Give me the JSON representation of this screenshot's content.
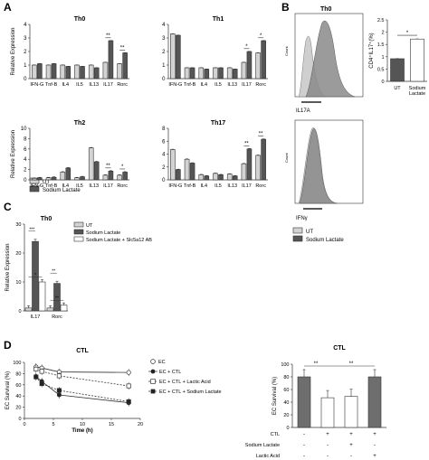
{
  "panels": {
    "A": "A",
    "B": "B",
    "C": "C",
    "D": "D"
  },
  "colors": {
    "ut": "#d3d3d3",
    "lactate": "#555555",
    "ab": "#ffffff",
    "stroke": "#333333",
    "hist_light": "#cfcfcf",
    "hist_dark": "#8a8a8a",
    "ec_dark": "#6e6e6e"
  },
  "legends": {
    "ab_ut": "UT",
    "ab_lac": "Sodium Lactate",
    "b_ut": "UT",
    "b_lac": "Sodium Lactate",
    "c_ut": "UT",
    "c_lac": "Sodium Lactate",
    "c_ab": "Sodium Lactate + Slc5a12 AB",
    "d_ec": "EC",
    "d_ctl": "EC + CTL",
    "d_la": "EC + CTL + Lactic Acid",
    "d_sl": "EC + CTL + Sodium Lactate"
  },
  "flow": {
    "title": "Th0",
    "label_top": "IL17A",
    "label_bot": "IFNγ",
    "ylabel": "Count"
  },
  "table": {
    "rows": [
      "CTL",
      "Sodium Lactate",
      "Lactic Acid"
    ],
    "cells": [
      [
        "-",
        "+",
        "+",
        "+"
      ],
      [
        "-",
        "-",
        "+",
        "-"
      ],
      [
        "-",
        "-",
        "-",
        "+"
      ]
    ]
  },
  "chart_data": [
    {
      "type": "bar",
      "title": "Th0",
      "ylabel": "Relative Expression",
      "ylim": [
        0,
        4
      ],
      "yticks": [
        0,
        1,
        2,
        3,
        4
      ],
      "categories": [
        "IFN-G",
        "Tnf-B",
        "IL4",
        "IL5",
        "IL13",
        "IL17",
        "Rorc"
      ],
      "series": [
        {
          "name": "UT",
          "values": [
            1,
            1,
            1,
            1,
            1,
            1.2,
            1.1
          ]
        },
        {
          "name": "Sodium Lactate",
          "values": [
            1.1,
            1.1,
            0.9,
            0.9,
            0.8,
            2.8,
            1.9
          ]
        }
      ],
      "sig": [
        {
          "cat": 5,
          "text": "**"
        },
        {
          "cat": 6,
          "text": "**"
        }
      ]
    },
    {
      "type": "bar",
      "title": "Th1",
      "ylabel": "",
      "ylim": [
        0,
        4
      ],
      "yticks": [
        0,
        1,
        2,
        3,
        4
      ],
      "categories": [
        "IFN-G",
        "Tnf-B",
        "IL4",
        "IL5",
        "IL13",
        "IL17",
        "Rorc"
      ],
      "series": [
        {
          "name": "UT",
          "values": [
            3.3,
            0.8,
            0.8,
            0.8,
            0.8,
            1.2,
            1.9
          ]
        },
        {
          "name": "Sodium Lactate",
          "values": [
            3.2,
            0.8,
            0.7,
            0.8,
            0.7,
            2.0,
            2.8
          ]
        }
      ],
      "sig": [
        {
          "cat": 5,
          "text": "*"
        },
        {
          "cat": 6,
          "text": "*"
        }
      ]
    },
    {
      "type": "bar",
      "title": "Th2",
      "ylabel": "Relative Expression",
      "ylim": [
        0,
        10
      ],
      "yticks": [
        0,
        2,
        4,
        6,
        8,
        10
      ],
      "categories": [
        "IFN-G",
        "Tnf-B",
        "IL4",
        "IL5",
        "IL13",
        "IL17",
        "Rorc"
      ],
      "series": [
        {
          "name": "UT",
          "values": [
            0.3,
            0.4,
            1.5,
            0.4,
            6.2,
            0.9,
            0.9
          ]
        },
        {
          "name": "Sodium Lactate",
          "values": [
            0.4,
            0.5,
            2.3,
            0.6,
            3.5,
            1.7,
            1.5
          ]
        }
      ],
      "sig": [
        {
          "cat": 5,
          "text": "**"
        },
        {
          "cat": 6,
          "text": "*"
        }
      ]
    },
    {
      "type": "bar",
      "title": "Th17",
      "ylabel": "",
      "ylim": [
        0,
        8
      ],
      "yticks": [
        0,
        2,
        4,
        6,
        8
      ],
      "categories": [
        "IFN-G",
        "Tnf-B",
        "IL4",
        "IL5",
        "IL13",
        "IL17",
        "Rorc"
      ],
      "series": [
        {
          "name": "UT",
          "values": [
            4.7,
            3.2,
            0.8,
            1.0,
            0.9,
            2.5,
            3.8
          ]
        },
        {
          "name": "Sodium Lactate",
          "values": [
            1.6,
            2.6,
            0.6,
            0.8,
            0.6,
            4.8,
            6.3
          ]
        }
      ],
      "sig": [
        {
          "cat": 5,
          "text": "**"
        },
        {
          "cat": 6,
          "text": "**"
        }
      ]
    },
    {
      "type": "bar",
      "title": "",
      "ylabel": "CD4⁺IL17⁺(%)",
      "ylim": [
        0,
        2.5
      ],
      "yticks": [
        0,
        0.5,
        1,
        1.5,
        2,
        2.5
      ],
      "categories": [
        "UT",
        "Sodium Lactate"
      ],
      "values": [
        0.92,
        1.72
      ],
      "sig": [
        {
          "text": "*"
        }
      ]
    },
    {
      "type": "bar",
      "title": "Th0",
      "ylabel": "Relative Expression",
      "ylim": [
        0,
        30
      ],
      "yticks": [
        0,
        10,
        20,
        30
      ],
      "categories": [
        "IL17",
        "Rorc"
      ],
      "series": [
        {
          "name": "UT",
          "values": [
            1,
            1
          ]
        },
        {
          "name": "Sodium Lactate",
          "values": [
            24,
            9.5
          ]
        },
        {
          "name": "Sodium Lactate + Slc5a12 AB",
          "values": [
            10,
            2
          ]
        }
      ],
      "sig": [
        {
          "cat": 0,
          "text": "***"
        },
        {
          "cat": 0,
          "text": "*"
        },
        {
          "cat": 1,
          "text": "**"
        },
        {
          "cat": 1,
          "text": "**"
        }
      ]
    },
    {
      "type": "line",
      "title": "CTL",
      "xlabel": "Time (h)",
      "ylabel": "EC Survival (%)",
      "xlim": [
        0,
        20
      ],
      "ylim": [
        0,
        100
      ],
      "xticks": [
        0,
        5,
        10,
        15,
        20
      ],
      "yticks": [
        0,
        20,
        40,
        60,
        80,
        100
      ],
      "x": [
        2,
        3,
        6,
        18
      ],
      "series": [
        {
          "name": "EC",
          "values": [
            92,
            90,
            83,
            82
          ]
        },
        {
          "name": "EC + CTL",
          "values": [
            75,
            66,
            42,
            28
          ]
        },
        {
          "name": "EC + CTL + Lactic Acid",
          "values": [
            88,
            84,
            76,
            58
          ]
        },
        {
          "name": "EC + CTL + Sodium Lactate",
          "values": [
            74,
            62,
            50,
            30
          ]
        }
      ]
    },
    {
      "type": "bar",
      "title": "CTL",
      "ylabel": "EC Survival (%)",
      "ylim": [
        0,
        100
      ],
      "yticks": [
        0,
        20,
        40,
        60,
        80,
        100
      ],
      "values": [
        80,
        47,
        49,
        80
      ],
      "sig": [
        {
          "text": "**"
        },
        {
          "text": "**"
        }
      ]
    }
  ]
}
